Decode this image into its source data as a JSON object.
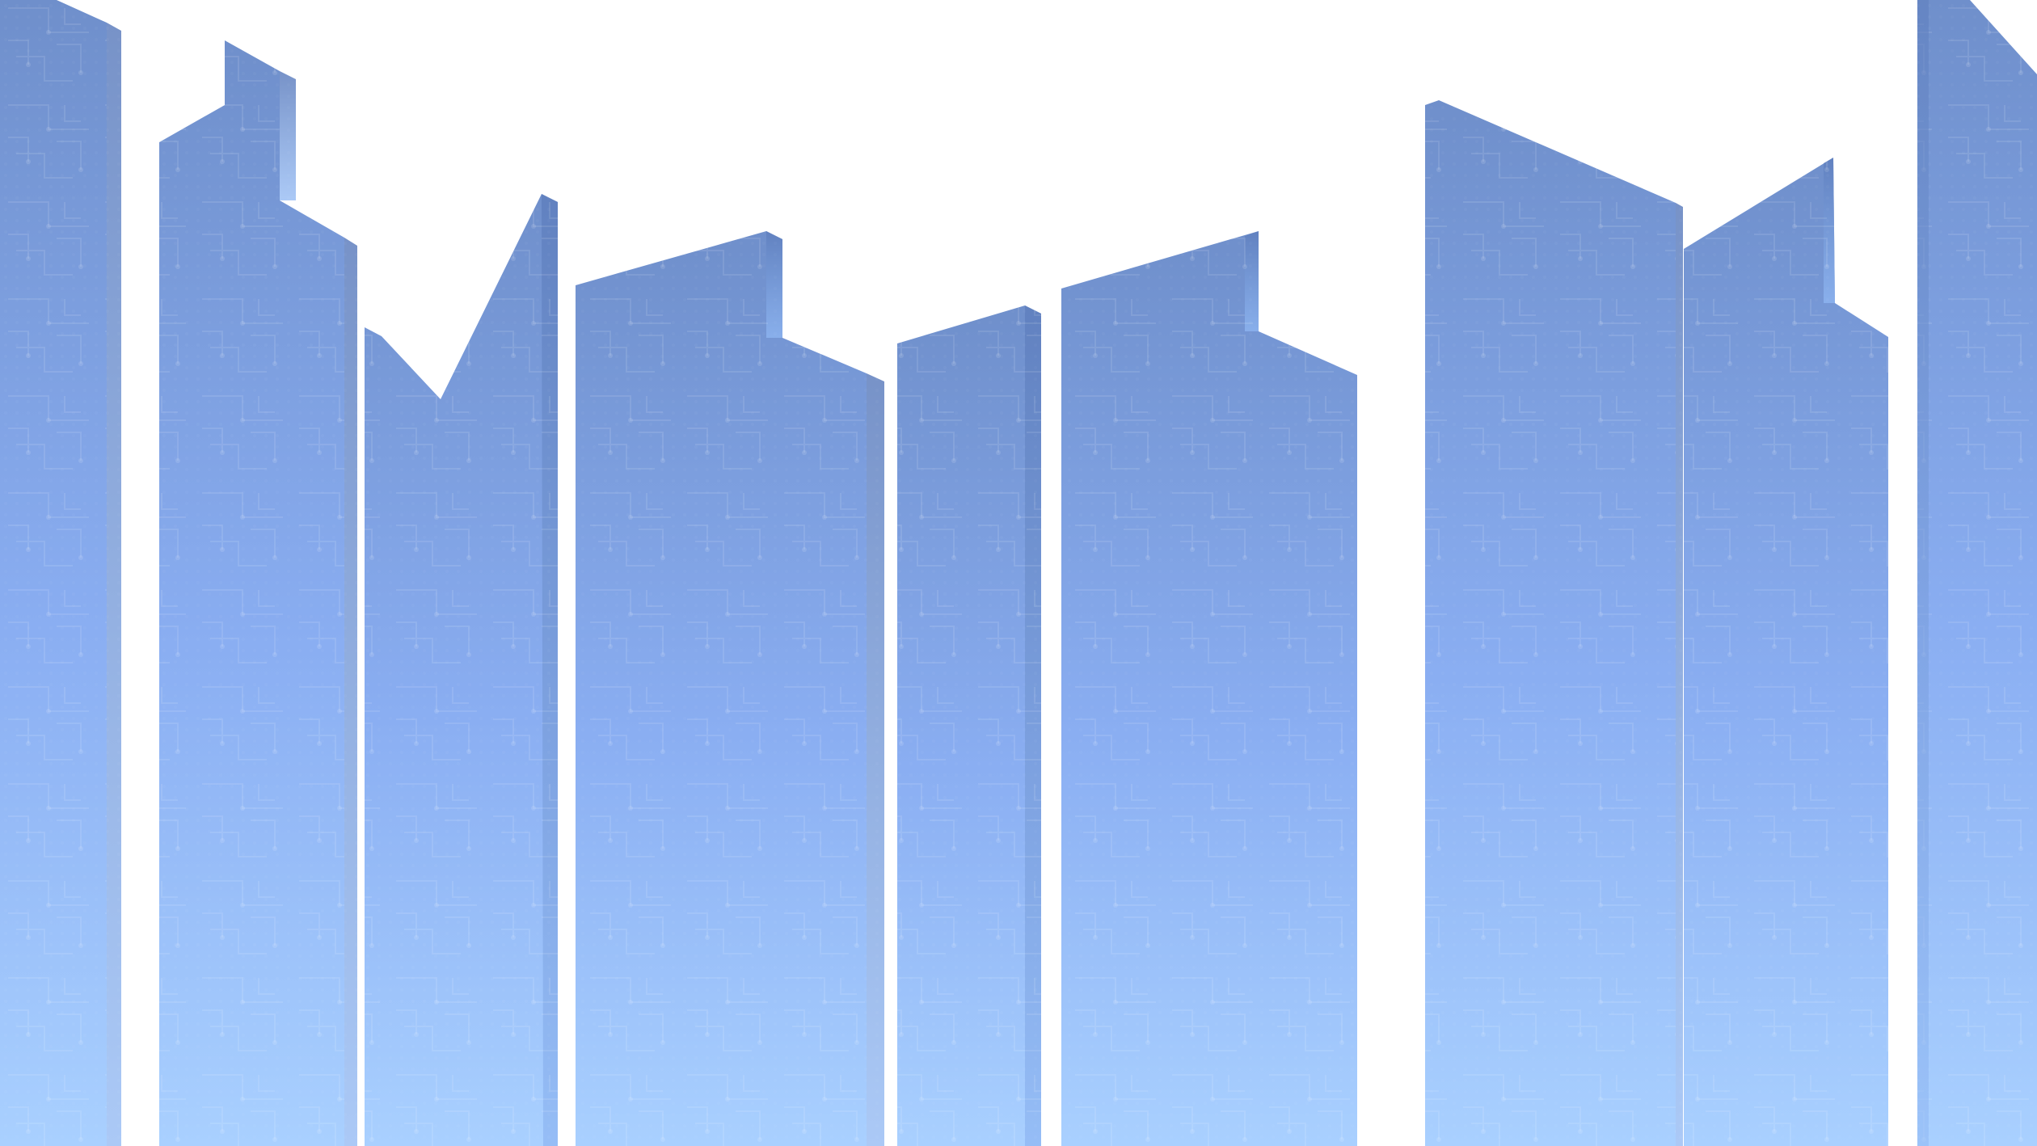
{
  "scene": {
    "subject": "city-skyline",
    "background_color": "#ffffff",
    "gradient": {
      "top_color": "#6f8fcb",
      "mid_color": "#8aaef2",
      "bottom_color": "#a9d0ff"
    },
    "side_shade_color": "#5f7fbe",
    "circuit_line_color": "#ffffff",
    "building_count": 10,
    "text": []
  }
}
